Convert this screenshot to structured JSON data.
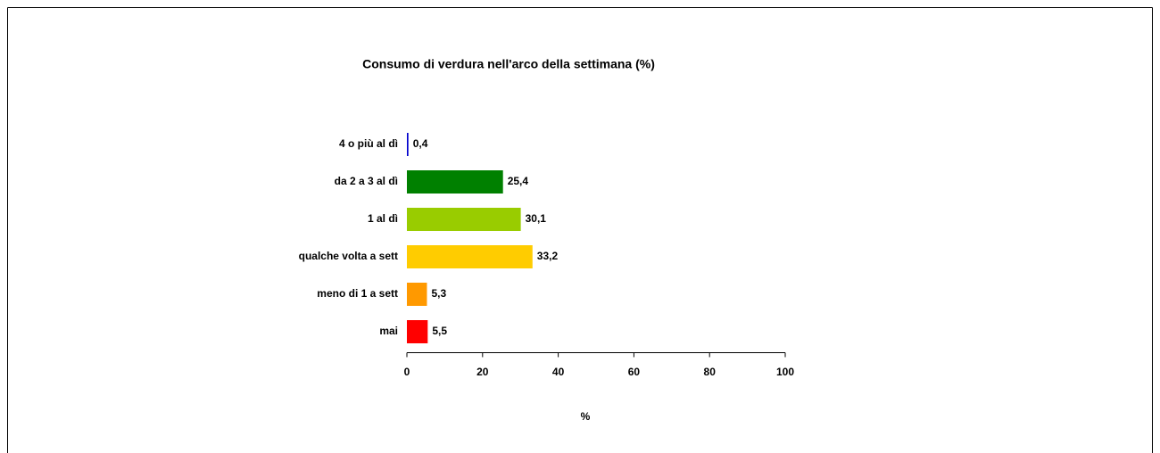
{
  "chart_data": {
    "type": "hbar",
    "title": "Consumo di verdura nell'arco della settimana  (%)",
    "categories": [
      "4 o più al dì",
      "da 2 a 3 al dì",
      "1 al dì",
      "qualche volta a sett",
      "meno di 1 a sett",
      "mai"
    ],
    "values": [
      0.4,
      25.4,
      30.1,
      33.2,
      5.3,
      5.5
    ],
    "value_labels": [
      "0,4",
      "25,4",
      "30,1",
      "33,2",
      "5,3",
      "5,5"
    ],
    "colors": [
      "#0000cc",
      "#008000",
      "#99cc00",
      "#ffcc00",
      "#ff9900",
      "#ff0000"
    ],
    "xlim": [
      0,
      100
    ],
    "xticks": [
      0,
      20,
      40,
      60,
      80,
      100
    ],
    "xlabel": "%"
  }
}
